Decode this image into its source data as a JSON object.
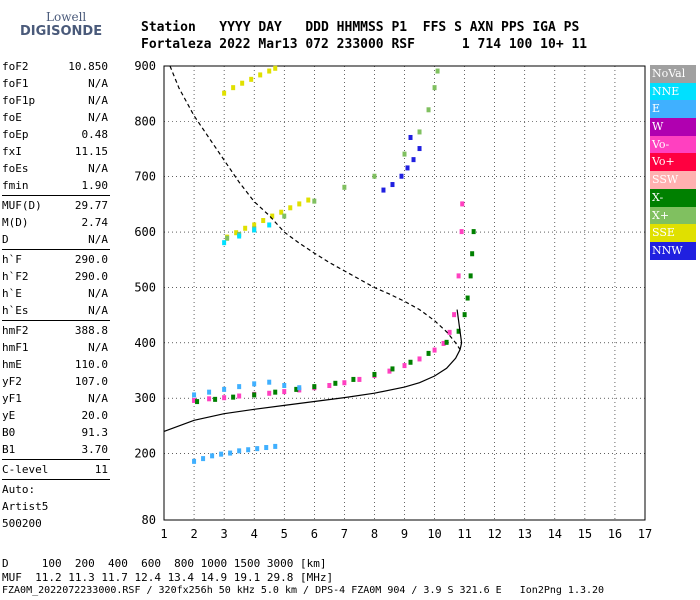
{
  "logo": {
    "line1": "Lowell",
    "line2": "DIGISONDE"
  },
  "header": {
    "row1": "Station   YYYY DAY   DDD HHMMSS P1  FFS S AXN PPS IGA PS",
    "row2": "Fortaleza 2022 Mar13 072 233000 RSF      1 714 100 10+ 11"
  },
  "params": {
    "group1": [
      {
        "k": "foF2",
        "v": "10.850"
      },
      {
        "k": "foF1",
        "v": "N/A"
      },
      {
        "k": "foF1p",
        "v": "N/A"
      },
      {
        "k": "foE",
        "v": "N/A"
      },
      {
        "k": "foEp",
        "v": "0.48"
      },
      {
        "k": "fxI",
        "v": "11.15"
      },
      {
        "k": "foEs",
        "v": "N/A"
      },
      {
        "k": "fmin",
        "v": "1.90"
      }
    ],
    "group2": [
      {
        "k": "MUF(D)",
        "v": "29.77"
      },
      {
        "k": "M(D)",
        "v": "2.74"
      },
      {
        "k": "D",
        "v": "N/A"
      }
    ],
    "group3": [
      {
        "k": "h`F",
        "v": "290.0"
      },
      {
        "k": "h`F2",
        "v": "290.0"
      },
      {
        "k": "h`E",
        "v": "N/A"
      },
      {
        "k": "h`Es",
        "v": "N/A"
      }
    ],
    "group4": [
      {
        "k": "hmF2",
        "v": "388.8"
      },
      {
        "k": "hmF1",
        "v": "N/A"
      },
      {
        "k": "hmE",
        "v": "110.0"
      },
      {
        "k": "yF2",
        "v": "107.0"
      },
      {
        "k": "yF1",
        "v": "N/A"
      },
      {
        "k": "yE",
        "v": "20.0"
      },
      {
        "k": "B0",
        "v": "91.3"
      },
      {
        "k": "B1",
        "v": "3.70"
      }
    ],
    "group5": [
      {
        "k": "C-level",
        "v": "11"
      }
    ],
    "auto": [
      "Auto:",
      "Artist5",
      "500200"
    ]
  },
  "legend": [
    {
      "label": "NoVal",
      "color": "#a0a0a0"
    },
    {
      "label": "NNE",
      "color": "#00e0ff"
    },
    {
      "label": "E",
      "color": "#40b0ff"
    },
    {
      "label": "W",
      "color": "#b000b0"
    },
    {
      "label": "Vo-",
      "color": "#ff40c0"
    },
    {
      "label": "Vo+",
      "color": "#ff0040"
    },
    {
      "label": "SSW",
      "color": "#ffb0b0"
    },
    {
      "label": "X-",
      "color": "#008000"
    },
    {
      "label": "X+",
      "color": "#80c060"
    },
    {
      "label": "SSE",
      "color": "#e0e000"
    },
    {
      "label": "NNW",
      "color": "#2020e0"
    }
  ],
  "footer": {
    "line1": "D     100  200  400  600  800 1000 1500 3000 [km]",
    "line2": "MUF  11.2 11.3 11.7 12.4 13.4 14.9 19.1 29.8 [MHz]",
    "line3": "FZA0M_2022072233000.RSF / 320fx256h 50 kHz 5.0 km / DPS-4 FZA0M 904 / 3.9 S 321.6 E   Ion2Png 1.3.20"
  },
  "chart_data": {
    "type": "scatter",
    "title": "",
    "xlabel": "",
    "ylabel": "",
    "xlim": [
      1,
      17
    ],
    "ylim": [
      80,
      900
    ],
    "x_ticks": [
      1,
      2,
      3,
      4,
      5,
      6,
      7,
      8,
      9,
      10,
      11,
      12,
      13,
      14,
      15,
      16,
      17
    ],
    "y_ticks": [
      80,
      200,
      300,
      400,
      500,
      600,
      700,
      800,
      900
    ],
    "grid": true,
    "series": [
      {
        "name": "Vo-",
        "color": "#ff40c0",
        "points": [
          [
            2.0,
            295
          ],
          [
            2.5,
            298
          ],
          [
            3.0,
            300
          ],
          [
            3.5,
            303
          ],
          [
            4.0,
            306
          ],
          [
            4.5,
            308
          ],
          [
            5.0,
            311
          ],
          [
            5.5,
            314
          ],
          [
            6.0,
            318
          ],
          [
            6.5,
            322
          ],
          [
            7.0,
            327
          ],
          [
            7.5,
            333
          ],
          [
            8.0,
            340
          ],
          [
            8.5,
            348
          ],
          [
            9.0,
            358
          ],
          [
            9.5,
            370
          ],
          [
            10.0,
            386
          ],
          [
            10.3,
            398
          ],
          [
            10.5,
            418
          ],
          [
            10.65,
            450
          ],
          [
            10.8,
            520
          ],
          [
            10.9,
            600
          ],
          [
            10.92,
            650
          ]
        ]
      },
      {
        "name": "X-",
        "color": "#008000",
        "points": [
          [
            2.1,
            293
          ],
          [
            2.7,
            297
          ],
          [
            3.3,
            301
          ],
          [
            4.0,
            305
          ],
          [
            4.7,
            310
          ],
          [
            5.4,
            315
          ],
          [
            6.0,
            320
          ],
          [
            6.7,
            326
          ],
          [
            7.3,
            333
          ],
          [
            8.0,
            342
          ],
          [
            8.6,
            352
          ],
          [
            9.2,
            364
          ],
          [
            9.8,
            380
          ],
          [
            10.4,
            400
          ],
          [
            10.8,
            420
          ],
          [
            11.0,
            450
          ],
          [
            11.1,
            480
          ],
          [
            11.2,
            520
          ],
          [
            11.25,
            560
          ],
          [
            11.3,
            600
          ]
        ]
      },
      {
        "name": "E",
        "color": "#40b0ff",
        "points": [
          [
            2.0,
            185
          ],
          [
            2.3,
            190
          ],
          [
            2.6,
            195
          ],
          [
            2.9,
            198
          ],
          [
            3.2,
            200
          ],
          [
            3.5,
            204
          ],
          [
            3.8,
            206
          ],
          [
            4.1,
            208
          ],
          [
            4.4,
            210
          ],
          [
            4.7,
            212
          ],
          [
            2.0,
            305
          ],
          [
            2.5,
            310
          ],
          [
            3.0,
            315
          ],
          [
            3.5,
            320
          ],
          [
            4.0,
            325
          ],
          [
            4.5,
            328
          ],
          [
            5.0,
            322
          ],
          [
            5.5,
            318
          ]
        ]
      },
      {
        "name": "SSE",
        "color": "#e0e000",
        "points": [
          [
            3.1,
            590
          ],
          [
            3.4,
            598
          ],
          [
            3.7,
            606
          ],
          [
            4.0,
            612
          ],
          [
            4.3,
            620
          ],
          [
            4.6,
            628
          ],
          [
            4.9,
            635
          ],
          [
            5.2,
            643
          ],
          [
            5.5,
            650
          ],
          [
            5.8,
            657
          ],
          [
            3.0,
            850
          ],
          [
            3.3,
            860
          ],
          [
            3.6,
            868
          ],
          [
            3.9,
            875
          ],
          [
            4.2,
            883
          ],
          [
            4.5,
            890
          ],
          [
            4.7,
            895
          ]
        ]
      },
      {
        "name": "NNW",
        "color": "#2020e0",
        "points": [
          [
            8.3,
            675
          ],
          [
            8.6,
            685
          ],
          [
            8.9,
            700
          ],
          [
            9.1,
            715
          ],
          [
            9.3,
            730
          ],
          [
            9.5,
            750
          ],
          [
            9.2,
            770
          ]
        ]
      },
      {
        "name": "X+",
        "color": "#80c060",
        "points": [
          [
            3.1,
            588
          ],
          [
            3.5,
            595
          ],
          [
            4.0,
            605
          ],
          [
            5.0,
            628
          ],
          [
            6.0,
            655
          ],
          [
            7.0,
            680
          ],
          [
            8.0,
            700
          ],
          [
            9.0,
            740
          ],
          [
            9.5,
            780
          ],
          [
            9.8,
            820
          ],
          [
            10.0,
            860
          ],
          [
            10.1,
            890
          ]
        ]
      },
      {
        "name": "NNE",
        "color": "#00e0ff",
        "points": [
          [
            3.0,
            580
          ],
          [
            3.5,
            592
          ],
          [
            4.0,
            603
          ],
          [
            4.5,
            612
          ]
        ]
      }
    ],
    "profile_solid": [
      [
        1.0,
        240
      ],
      [
        2.0,
        260
      ],
      [
        3.0,
        272
      ],
      [
        4.0,
        280
      ],
      [
        5.0,
        287
      ],
      [
        6.0,
        294
      ],
      [
        7.0,
        301
      ],
      [
        8.0,
        309
      ],
      [
        9.0,
        320
      ],
      [
        9.5,
        328
      ],
      [
        10.0,
        340
      ],
      [
        10.4,
        354
      ],
      [
        10.7,
        372
      ],
      [
        10.85,
        388
      ],
      [
        10.9,
        400
      ],
      [
        10.85,
        420
      ],
      [
        10.8,
        440
      ],
      [
        10.75,
        460
      ]
    ],
    "profile_dashed": [
      [
        1.2,
        900
      ],
      [
        1.5,
        860
      ],
      [
        2.0,
        810
      ],
      [
        2.5,
        770
      ],
      [
        3.0,
        730
      ],
      [
        3.5,
        690
      ],
      [
        4.0,
        655
      ],
      [
        4.5,
        630
      ],
      [
        5.0,
        600
      ],
      [
        5.5,
        580
      ],
      [
        6.0,
        562
      ],
      [
        6.5,
        545
      ],
      [
        7.0,
        530
      ],
      [
        7.5,
        515
      ],
      [
        8.0,
        500
      ],
      [
        8.5,
        488
      ],
      [
        9.0,
        475
      ],
      [
        9.5,
        460
      ],
      [
        10.0,
        440
      ],
      [
        10.4,
        420
      ],
      [
        10.7,
        400
      ],
      [
        10.85,
        388
      ]
    ]
  }
}
